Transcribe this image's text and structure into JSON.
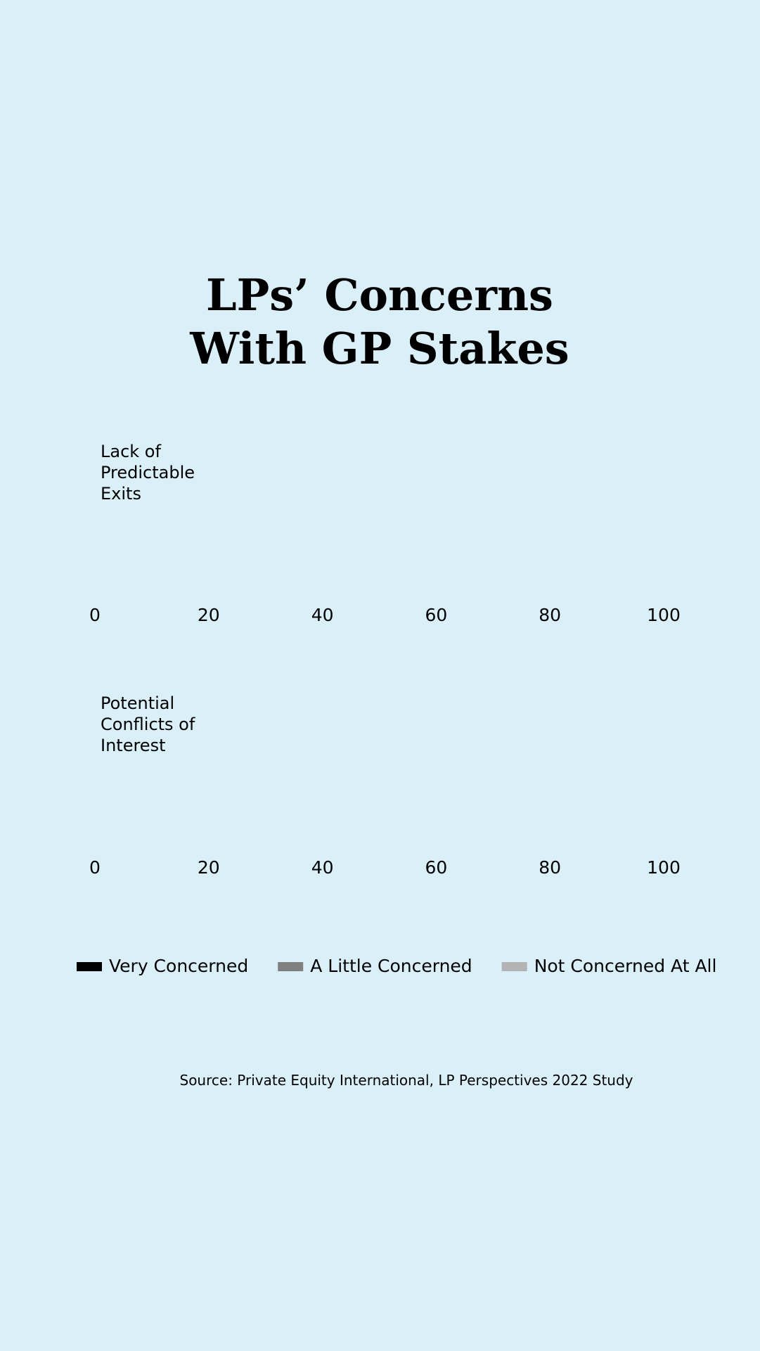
{
  "title": "LPs’ Concerns With GP Stakes",
  "source": "Source: Private Equity International, LP Perspectives 2022 Study",
  "chart_data": [
    {
      "type": "bar",
      "orientation": "horizontal",
      "stacked": true,
      "title": "Lack of Predictable Exits",
      "xlim": [
        0,
        100
      ],
      "xticks": [
        0,
        20,
        40,
        60,
        80,
        100
      ],
      "series": [
        {
          "name": "Very Concerned",
          "color": "#000000"
        },
        {
          "name": "A Little Concerned",
          "color": "#808080"
        },
        {
          "name": "Not Concerned At All",
          "color": "#b3b3b3"
        }
      ]
    },
    {
      "type": "bar",
      "orientation": "horizontal",
      "stacked": true,
      "title": "Potential Conflicts of Interest",
      "xlim": [
        0,
        100
      ],
      "xticks": [
        0,
        20,
        40,
        60,
        80,
        100
      ],
      "series": [
        {
          "name": "Very Concerned",
          "color": "#000000"
        },
        {
          "name": "A Little Concerned",
          "color": "#808080"
        },
        {
          "name": "Not Concerned At All",
          "color": "#b3b3b3"
        }
      ]
    }
  ]
}
